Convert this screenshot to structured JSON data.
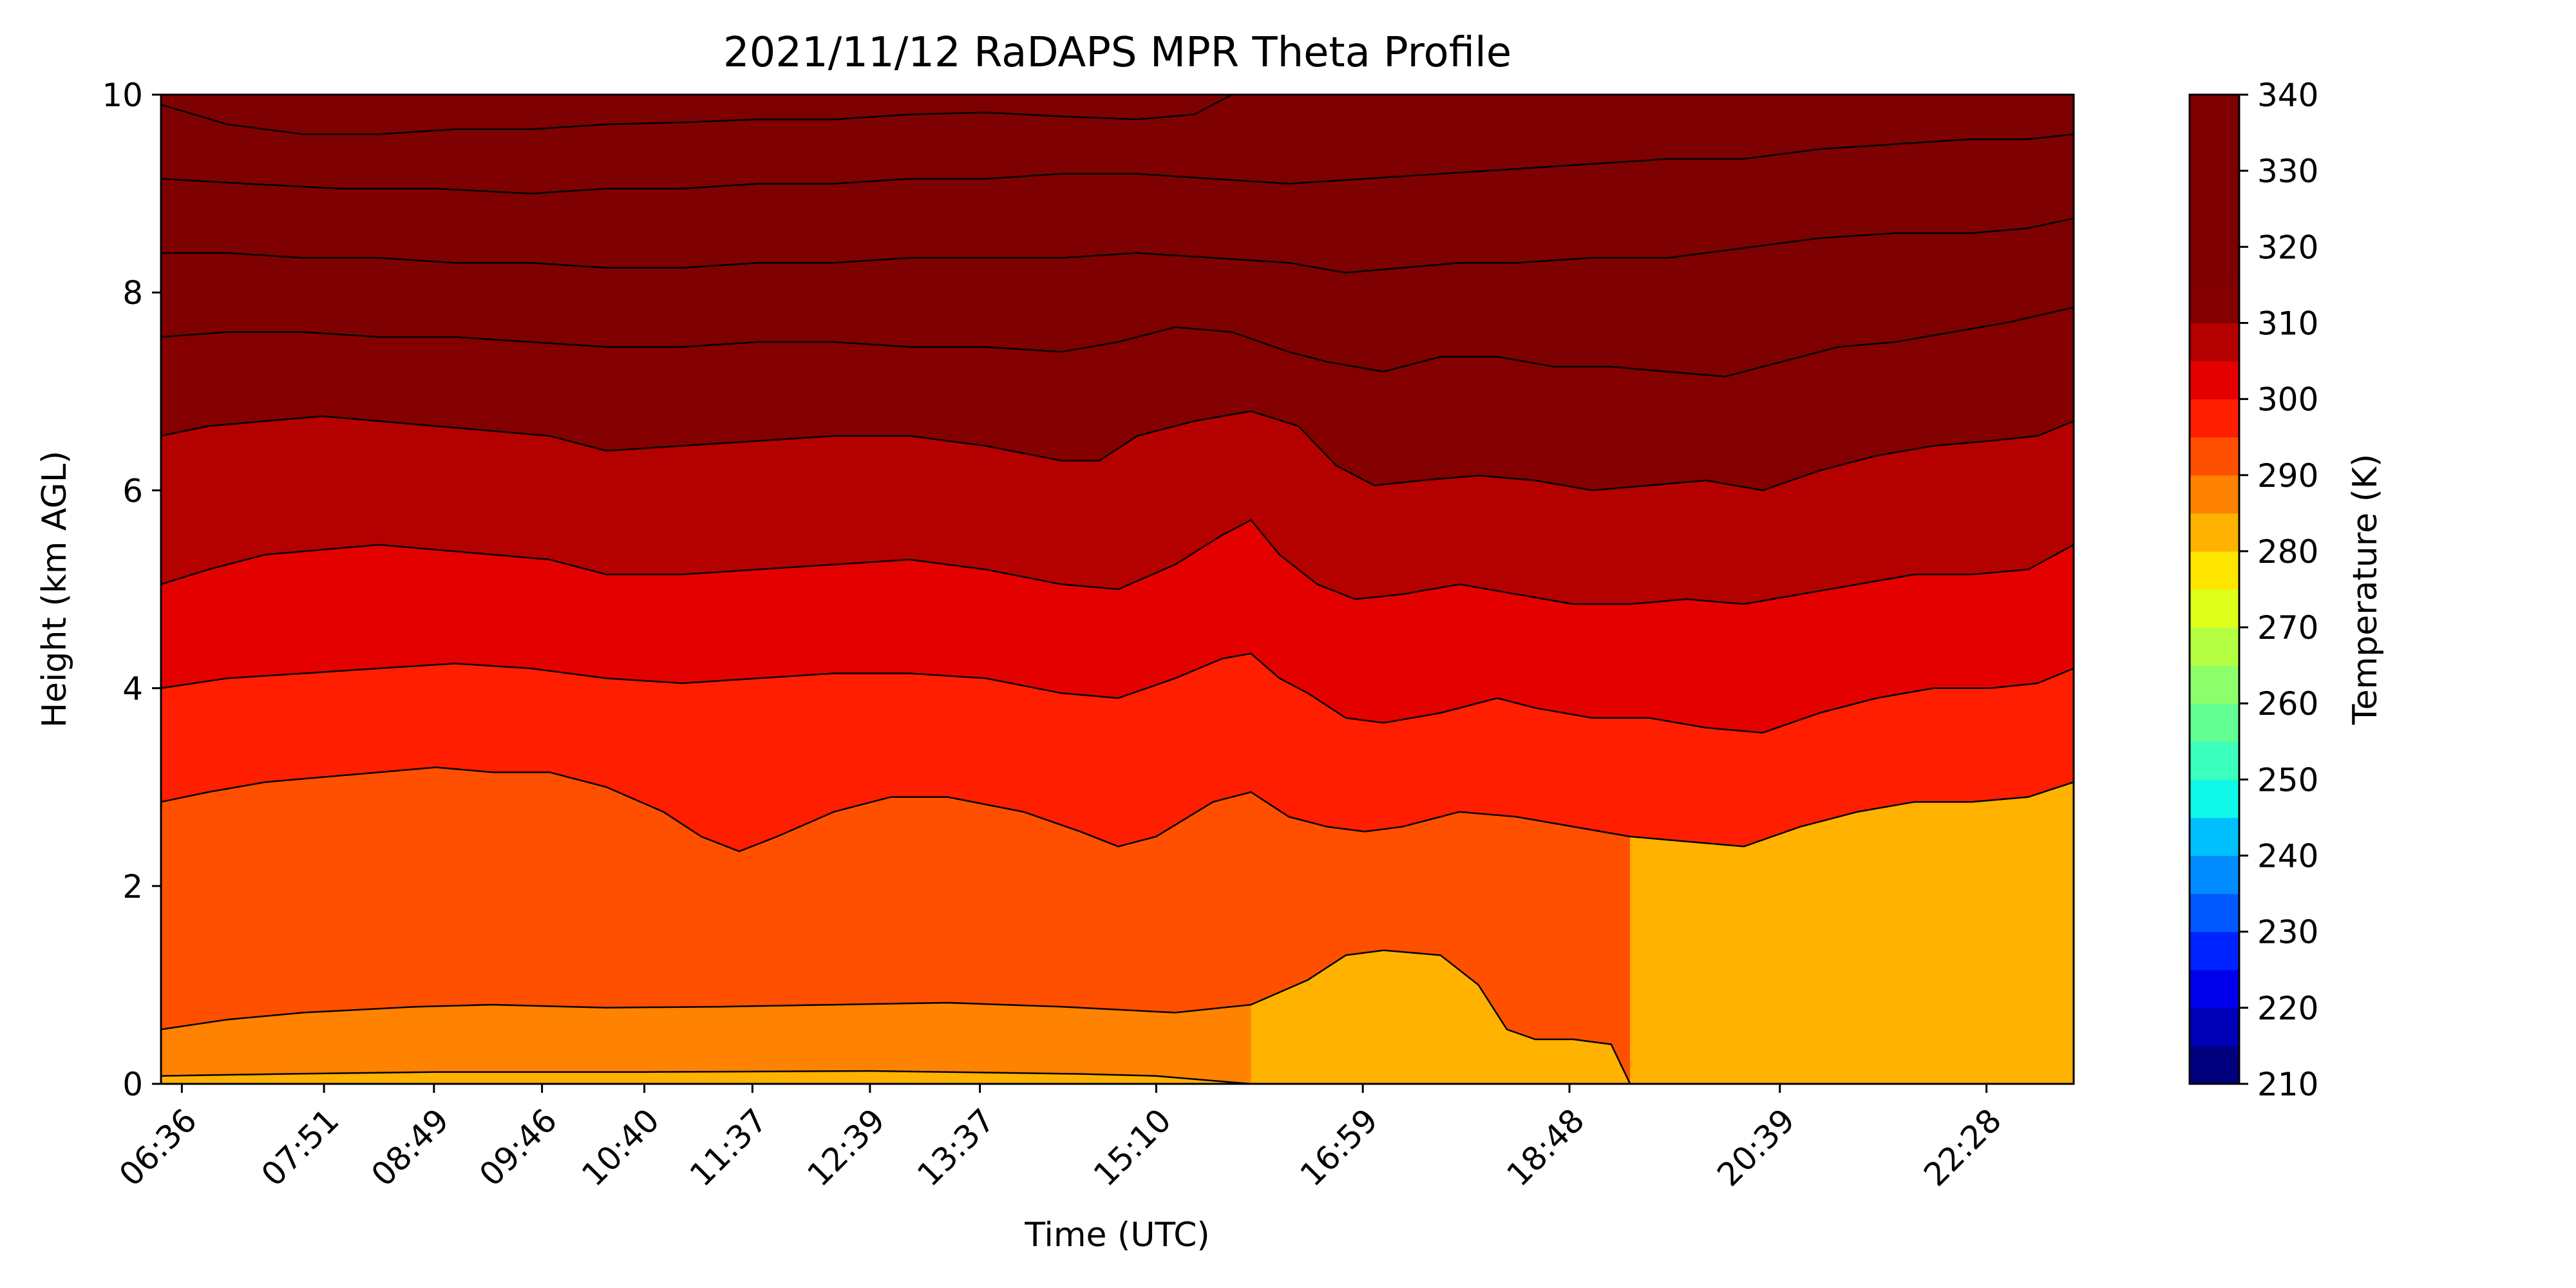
{
  "chart_data": {
    "type": "heatmap",
    "title": "2021/11/12 RaDAPS MPR Theta Profile",
    "xlabel": "Time (UTC)",
    "ylabel": "Height (km AGL)",
    "ylim": [
      0,
      10
    ],
    "xlim_minutes": [
      385,
      1394
    ],
    "y_ticks": [
      0,
      2,
      4,
      6,
      8,
      10
    ],
    "x_ticks": [
      {
        "label": "06:36",
        "minutes": 396
      },
      {
        "label": "07:51",
        "minutes": 471
      },
      {
        "label": "08:49",
        "minutes": 529
      },
      {
        "label": "09:46",
        "minutes": 586
      },
      {
        "label": "10:40",
        "minutes": 640
      },
      {
        "label": "11:37",
        "minutes": 697
      },
      {
        "label": "12:39",
        "minutes": 759
      },
      {
        "label": "13:37",
        "minutes": 817
      },
      {
        "label": "15:10",
        "minutes": 910
      },
      {
        "label": "16:59",
        "minutes": 1019
      },
      {
        "label": "18:48",
        "minutes": 1128
      },
      {
        "label": "20:39",
        "minutes": 1239
      },
      {
        "label": "22:28",
        "minutes": 1348
      }
    ],
    "colorbar": {
      "label": "Temperature (K)",
      "min": 210,
      "max": 340,
      "step": 5,
      "tick_values": [
        210,
        220,
        230,
        240,
        250,
        260,
        270,
        280,
        290,
        300,
        310,
        320,
        330,
        340
      ],
      "colors": [
        "#00007f",
        "#0000b6",
        "#0000ed",
        "#0024ff",
        "#0058ff",
        "#008cff",
        "#00c0ff",
        "#0ff8e7",
        "#3bffbc",
        "#63ff93",
        "#8cff6b",
        "#b5ff42",
        "#ddff1a",
        "#ffe600",
        "#ffb200",
        "#ff8200",
        "#ff5000",
        "#ff1e00",
        "#e50000",
        "#b50000",
        "#840000",
        "#7f0000",
        "#7f0000",
        "#7f0000",
        "#7f0000",
        "#7f0000"
      ]
    },
    "series": [
      {
        "level": 285,
        "points": [
          [
            385,
            0.08
          ],
          [
            450,
            0.1
          ],
          [
            530,
            0.12
          ],
          [
            640,
            0.12
          ],
          [
            760,
            0.13
          ],
          [
            870,
            0.1
          ],
          [
            910,
            0.08
          ],
          [
            960,
            0.0
          ]
        ]
      },
      {
        "level": 290,
        "points": [
          [
            385,
            0.55
          ],
          [
            420,
            0.65
          ],
          [
            460,
            0.72
          ],
          [
            520,
            0.78
          ],
          [
            560,
            0.8
          ],
          [
            620,
            0.77
          ],
          [
            680,
            0.78
          ],
          [
            740,
            0.8
          ],
          [
            800,
            0.82
          ],
          [
            860,
            0.78
          ],
          [
            920,
            0.72
          ],
          [
            960,
            0.8
          ],
          [
            990,
            1.05
          ],
          [
            1010,
            1.3
          ],
          [
            1030,
            1.35
          ],
          [
            1060,
            1.3
          ],
          [
            1080,
            1.0
          ],
          [
            1095,
            0.55
          ],
          [
            1110,
            0.45
          ],
          [
            1130,
            0.45
          ],
          [
            1150,
            0.4
          ],
          [
            1160,
            0.0
          ]
        ]
      },
      {
        "level": 295,
        "points": [
          [
            385,
            2.85
          ],
          [
            410,
            2.95
          ],
          [
            440,
            3.05
          ],
          [
            470,
            3.1
          ],
          [
            500,
            3.15
          ],
          [
            530,
            3.2
          ],
          [
            560,
            3.15
          ],
          [
            590,
            3.15
          ],
          [
            620,
            3.0
          ],
          [
            650,
            2.75
          ],
          [
            670,
            2.5
          ],
          [
            690,
            2.35
          ],
          [
            710,
            2.5
          ],
          [
            740,
            2.75
          ],
          [
            770,
            2.9
          ],
          [
            800,
            2.9
          ],
          [
            840,
            2.75
          ],
          [
            870,
            2.55
          ],
          [
            890,
            2.4
          ],
          [
            910,
            2.5
          ],
          [
            940,
            2.85
          ],
          [
            960,
            2.95
          ],
          [
            980,
            2.7
          ],
          [
            1000,
            2.6
          ],
          [
            1020,
            2.55
          ],
          [
            1040,
            2.6
          ],
          [
            1070,
            2.75
          ],
          [
            1100,
            2.7
          ],
          [
            1130,
            2.6
          ],
          [
            1160,
            2.5
          ],
          [
            1190,
            2.45
          ],
          [
            1220,
            2.4
          ],
          [
            1250,
            2.6
          ],
          [
            1280,
            2.75
          ],
          [
            1310,
            2.85
          ],
          [
            1340,
            2.85
          ],
          [
            1370,
            2.9
          ],
          [
            1394,
            3.05
          ]
        ]
      },
      {
        "level": 300,
        "points": [
          [
            385,
            4.0
          ],
          [
            420,
            4.1
          ],
          [
            460,
            4.15
          ],
          [
            500,
            4.2
          ],
          [
            540,
            4.25
          ],
          [
            580,
            4.2
          ],
          [
            620,
            4.1
          ],
          [
            660,
            4.05
          ],
          [
            700,
            4.1
          ],
          [
            740,
            4.15
          ],
          [
            780,
            4.15
          ],
          [
            820,
            4.1
          ],
          [
            860,
            3.95
          ],
          [
            890,
            3.9
          ],
          [
            920,
            4.1
          ],
          [
            945,
            4.3
          ],
          [
            960,
            4.35
          ],
          [
            975,
            4.1
          ],
          [
            990,
            3.95
          ],
          [
            1010,
            3.7
          ],
          [
            1030,
            3.65
          ],
          [
            1060,
            3.75
          ],
          [
            1090,
            3.9
          ],
          [
            1110,
            3.8
          ],
          [
            1140,
            3.7
          ],
          [
            1170,
            3.7
          ],
          [
            1200,
            3.6
          ],
          [
            1230,
            3.55
          ],
          [
            1260,
            3.75
          ],
          [
            1290,
            3.9
          ],
          [
            1320,
            4.0
          ],
          [
            1350,
            4.0
          ],
          [
            1375,
            4.05
          ],
          [
            1394,
            4.2
          ]
        ]
      },
      {
        "level": 305,
        "points": [
          [
            385,
            5.05
          ],
          [
            410,
            5.2
          ],
          [
            440,
            5.35
          ],
          [
            470,
            5.4
          ],
          [
            500,
            5.45
          ],
          [
            530,
            5.4
          ],
          [
            560,
            5.35
          ],
          [
            590,
            5.3
          ],
          [
            620,
            5.15
          ],
          [
            660,
            5.15
          ],
          [
            700,
            5.2
          ],
          [
            740,
            5.25
          ],
          [
            780,
            5.3
          ],
          [
            820,
            5.2
          ],
          [
            860,
            5.05
          ],
          [
            890,
            5.0
          ],
          [
            920,
            5.25
          ],
          [
            945,
            5.55
          ],
          [
            960,
            5.7
          ],
          [
            975,
            5.35
          ],
          [
            995,
            5.05
          ],
          [
            1015,
            4.9
          ],
          [
            1040,
            4.95
          ],
          [
            1070,
            5.05
          ],
          [
            1100,
            4.95
          ],
          [
            1130,
            4.85
          ],
          [
            1160,
            4.85
          ],
          [
            1190,
            4.9
          ],
          [
            1220,
            4.85
          ],
          [
            1250,
            4.95
          ],
          [
            1280,
            5.05
          ],
          [
            1310,
            5.15
          ],
          [
            1340,
            5.15
          ],
          [
            1370,
            5.2
          ],
          [
            1394,
            5.45
          ]
        ]
      },
      {
        "level": 310,
        "points": [
          [
            385,
            6.55
          ],
          [
            410,
            6.65
          ],
          [
            440,
            6.7
          ],
          [
            470,
            6.75
          ],
          [
            500,
            6.7
          ],
          [
            530,
            6.65
          ],
          [
            560,
            6.6
          ],
          [
            590,
            6.55
          ],
          [
            620,
            6.4
          ],
          [
            660,
            6.45
          ],
          [
            700,
            6.5
          ],
          [
            740,
            6.55
          ],
          [
            780,
            6.55
          ],
          [
            820,
            6.45
          ],
          [
            860,
            6.3
          ],
          [
            880,
            6.3
          ],
          [
            900,
            6.55
          ],
          [
            930,
            6.7
          ],
          [
            960,
            6.8
          ],
          [
            985,
            6.65
          ],
          [
            1005,
            6.25
          ],
          [
            1025,
            6.05
          ],
          [
            1050,
            6.1
          ],
          [
            1080,
            6.15
          ],
          [
            1110,
            6.1
          ],
          [
            1140,
            6.0
          ],
          [
            1170,
            6.05
          ],
          [
            1200,
            6.1
          ],
          [
            1230,
            6.0
          ],
          [
            1260,
            6.2
          ],
          [
            1290,
            6.35
          ],
          [
            1320,
            6.45
          ],
          [
            1350,
            6.5
          ],
          [
            1375,
            6.55
          ],
          [
            1394,
            6.7
          ]
        ]
      },
      {
        "level": 315,
        "points": [
          [
            385,
            7.55
          ],
          [
            420,
            7.6
          ],
          [
            460,
            7.6
          ],
          [
            500,
            7.55
          ],
          [
            540,
            7.55
          ],
          [
            580,
            7.5
          ],
          [
            620,
            7.45
          ],
          [
            660,
            7.45
          ],
          [
            700,
            7.5
          ],
          [
            740,
            7.5
          ],
          [
            780,
            7.45
          ],
          [
            820,
            7.45
          ],
          [
            860,
            7.4
          ],
          [
            890,
            7.5
          ],
          [
            920,
            7.65
          ],
          [
            950,
            7.6
          ],
          [
            980,
            7.4
          ],
          [
            1000,
            7.3
          ],
          [
            1030,
            7.2
          ],
          [
            1060,
            7.35
          ],
          [
            1090,
            7.35
          ],
          [
            1120,
            7.25
          ],
          [
            1150,
            7.25
          ],
          [
            1180,
            7.2
          ],
          [
            1210,
            7.15
          ],
          [
            1240,
            7.3
          ],
          [
            1270,
            7.45
          ],
          [
            1300,
            7.5
          ],
          [
            1330,
            7.6
          ],
          [
            1360,
            7.7
          ],
          [
            1394,
            7.85
          ]
        ]
      },
      {
        "level": 320,
        "points": [
          [
            385,
            8.4
          ],
          [
            420,
            8.4
          ],
          [
            460,
            8.35
          ],
          [
            500,
            8.35
          ],
          [
            540,
            8.3
          ],
          [
            580,
            8.3
          ],
          [
            620,
            8.25
          ],
          [
            660,
            8.25
          ],
          [
            700,
            8.3
          ],
          [
            740,
            8.3
          ],
          [
            780,
            8.35
          ],
          [
            820,
            8.35
          ],
          [
            860,
            8.35
          ],
          [
            900,
            8.4
          ],
          [
            940,
            8.35
          ],
          [
            980,
            8.3
          ],
          [
            1010,
            8.2
          ],
          [
            1040,
            8.25
          ],
          [
            1070,
            8.3
          ],
          [
            1100,
            8.3
          ],
          [
            1140,
            8.35
          ],
          [
            1180,
            8.35
          ],
          [
            1220,
            8.45
          ],
          [
            1260,
            8.55
          ],
          [
            1300,
            8.6
          ],
          [
            1340,
            8.6
          ],
          [
            1370,
            8.65
          ],
          [
            1394,
            8.75
          ]
        ]
      },
      {
        "level": 325,
        "points": [
          [
            385,
            9.15
          ],
          [
            430,
            9.1
          ],
          [
            480,
            9.05
          ],
          [
            530,
            9.05
          ],
          [
            580,
            9.0
          ],
          [
            620,
            9.05
          ],
          [
            660,
            9.05
          ],
          [
            700,
            9.1
          ],
          [
            740,
            9.1
          ],
          [
            780,
            9.15
          ],
          [
            820,
            9.15
          ],
          [
            860,
            9.2
          ],
          [
            900,
            9.2
          ],
          [
            940,
            9.15
          ],
          [
            980,
            9.1
          ],
          [
            1020,
            9.15
          ],
          [
            1060,
            9.2
          ],
          [
            1100,
            9.25
          ],
          [
            1140,
            9.3
          ],
          [
            1180,
            9.35
          ],
          [
            1220,
            9.35
          ],
          [
            1260,
            9.45
          ],
          [
            1300,
            9.5
          ],
          [
            1340,
            9.55
          ],
          [
            1370,
            9.55
          ],
          [
            1394,
            9.6
          ]
        ]
      },
      {
        "level": 330,
        "points": [
          [
            385,
            9.9
          ],
          [
            420,
            9.7
          ],
          [
            460,
            9.6
          ],
          [
            500,
            9.6
          ],
          [
            540,
            9.65
          ],
          [
            580,
            9.65
          ],
          [
            620,
            9.7
          ],
          [
            660,
            9.72
          ],
          [
            700,
            9.75
          ],
          [
            740,
            9.75
          ],
          [
            780,
            9.8
          ],
          [
            820,
            9.82
          ],
          [
            860,
            9.78
          ],
          [
            900,
            9.75
          ],
          [
            930,
            9.8
          ],
          [
            950,
            10.0
          ]
        ]
      }
    ]
  }
}
